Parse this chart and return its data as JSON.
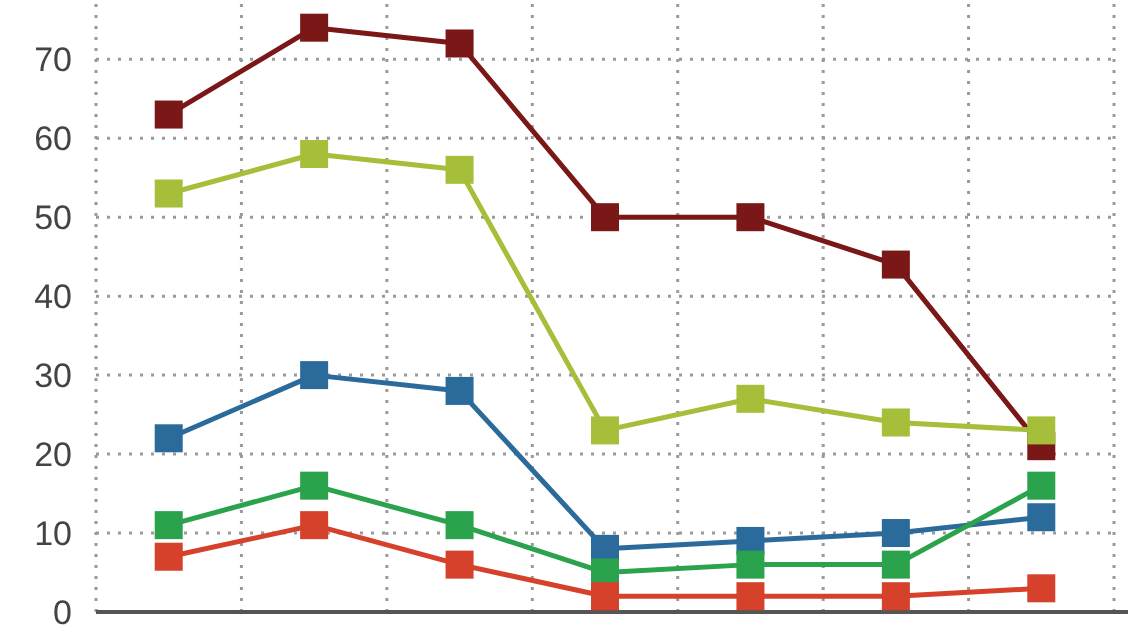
{
  "chart_data": {
    "type": "line",
    "categories": [
      null,
      null,
      null,
      null,
      null,
      null,
      null
    ],
    "ylim": [
      0,
      77
    ],
    "yticks": [
      0,
      10,
      20,
      30,
      40,
      50,
      60,
      70
    ],
    "grid": true,
    "marker": "square",
    "line_style": "solid",
    "series": [
      {
        "color": "#7a1717",
        "values": [
          63,
          74,
          72,
          50,
          50,
          44,
          21
        ]
      },
      {
        "color": "#a6bf3a",
        "values": [
          53,
          58,
          56,
          23,
          27,
          24,
          23
        ]
      },
      {
        "color": "#2a6b9c",
        "values": [
          22,
          30,
          28,
          8,
          9,
          10,
          12
        ]
      },
      {
        "color": "#2ba24c",
        "values": [
          11,
          16,
          11,
          5,
          6,
          6,
          16
        ]
      },
      {
        "color": "#d6412b",
        "values": [
          7,
          11,
          6,
          2,
          2,
          2,
          3
        ]
      }
    ]
  }
}
